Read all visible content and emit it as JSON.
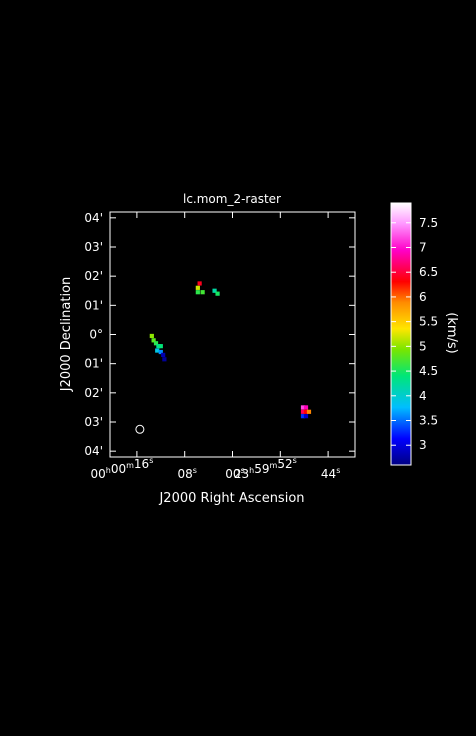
{
  "chart_data": {
    "type": "heatmap",
    "title": "lc.mom_2-raster",
    "xlabel": "J2000 Right Ascension",
    "ylabel": "J2000 Declination",
    "x_ticks": [
      {
        "h": "00",
        "m": "00",
        "s": "16",
        "ra_sec": 16
      },
      {
        "s": "08",
        "ra_sec": 8
      },
      {
        "s": "00",
        "ra_sec": 0
      },
      {
        "h": "23",
        "m": "59",
        "s": "52",
        "ra_sec": -8
      },
      {
        "s": "44",
        "ra_sec": -16
      }
    ],
    "y_ticks": [
      {
        "label": "04'",
        "dec_arcmin": 4
      },
      {
        "label": "03'",
        "dec_arcmin": 3
      },
      {
        "label": "02'",
        "dec_arcmin": 2
      },
      {
        "label": "01'",
        "dec_arcmin": 1
      },
      {
        "label": "0°",
        "dec_arcmin": 0
      },
      {
        "label": "01'",
        "dec_arcmin": -1
      },
      {
        "label": "02'",
        "dec_arcmin": -2
      },
      {
        "label": "03'",
        "dec_arcmin": -3
      },
      {
        "label": "04'",
        "dec_arcmin": -4
      }
    ],
    "xlim_ra_sec": [
      20.5,
      -20.5
    ],
    "ylim_dec_arcmin": [
      -4.2,
      4.2
    ],
    "colorbar": {
      "label": "(km/s)",
      "range": [
        2.6,
        7.9
      ],
      "ticks": [
        "3",
        "3.5",
        "4",
        "4.5",
        "5",
        "5.5",
        "6",
        "6.5",
        "7",
        "7.5"
      ],
      "tick_values": [
        3,
        3.5,
        4,
        4.5,
        5,
        5.5,
        6,
        6.5,
        7,
        7.5
      ]
    },
    "pixels": [
      {
        "ra": 5.5,
        "dec": 1.75,
        "v": 6.4
      },
      {
        "ra": 5.8,
        "dec": 1.6,
        "v": 5.2
      },
      {
        "ra": 5.8,
        "dec": 1.45,
        "v": 4.6
      },
      {
        "ra": 5.0,
        "dec": 1.45,
        "v": 4.7
      },
      {
        "ra": 3.0,
        "dec": 1.5,
        "v": 4.2
      },
      {
        "ra": 2.5,
        "dec": 1.4,
        "v": 4.5
      },
      {
        "ra": 13.5,
        "dec": -0.05,
        "v": 5.0
      },
      {
        "ra": 13.2,
        "dec": -0.2,
        "v": 4.8
      },
      {
        "ra": 12.8,
        "dec": -0.3,
        "v": 4.6
      },
      {
        "ra": 12.4,
        "dec": -0.4,
        "v": 4.3
      },
      {
        "ra": 12.0,
        "dec": -0.4,
        "v": 4.4
      },
      {
        "ra": 12.6,
        "dec": -0.55,
        "v": 3.9
      },
      {
        "ra": 12.0,
        "dec": -0.6,
        "v": 3.6
      },
      {
        "ra": 11.6,
        "dec": -0.7,
        "v": 2.8
      },
      {
        "ra": 11.4,
        "dec": -0.85,
        "v": 2.7
      },
      {
        "ra": -11.8,
        "dec": -2.5,
        "v": 7.2
      },
      {
        "ra": -12.3,
        "dec": -2.5,
        "v": 6.9
      },
      {
        "ra": -11.8,
        "dec": -2.65,
        "v": 6.6
      },
      {
        "ra": -12.3,
        "dec": -2.65,
        "v": 6.3
      },
      {
        "ra": -12.8,
        "dec": -2.65,
        "v": 5.9
      },
      {
        "ra": -11.8,
        "dec": -2.8,
        "v": 3.3
      },
      {
        "ra": -12.3,
        "dec": -2.8,
        "v": 2.9
      }
    ],
    "beam": {
      "ra": 15.5,
      "dec": -3.25
    }
  }
}
